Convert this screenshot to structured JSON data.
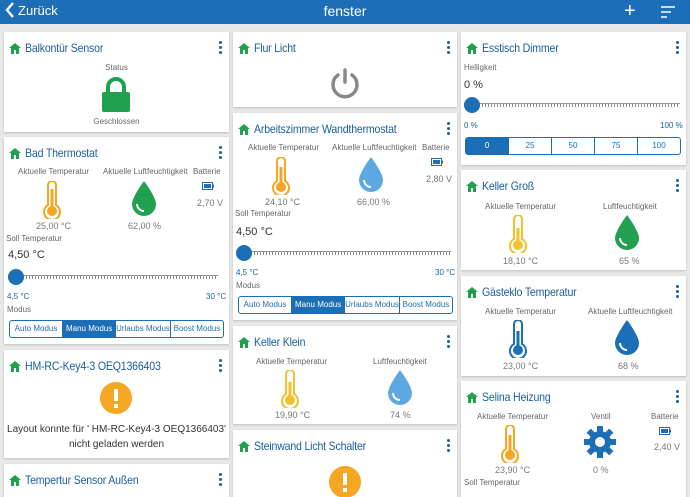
{
  "header": {
    "back_label": "Zurück",
    "title": "fenster",
    "add_label": "+"
  },
  "col1": {
    "balkon": {
      "title": "Balkontür Sensor",
      "status_label": "Status",
      "status_value": "Geschlossen"
    },
    "bad": {
      "title": "Bad Thermostat",
      "temp_label": "Aktuelle Temperatur",
      "hum_label": "Aktuelle Luftfeuchtigkeit",
      "bat_label": "Batterie",
      "temp_value": "25,00 °C",
      "hum_value": "62,00 %",
      "bat_value": "2,70 V",
      "setpoint_label": "Soll Temperatur",
      "setpoint_value": "4,50 °C",
      "min": "4,5 °C",
      "max": "30 °C",
      "mode_label": "Modus",
      "modes": [
        "Auto Modus",
        "Manu Modus",
        "Urlaubs Modus",
        "Boost Modus"
      ]
    },
    "key": {
      "title": "HM-RC-Key4-3 OEQ1366403",
      "message": "Layout konnte für ' HM-RC-Key4-3 OEQ1366403' nicht geladen werden"
    },
    "tsensor": {
      "title": "Tempertur Sensor Außen"
    }
  },
  "col2": {
    "flur": {
      "title": "Flur Licht"
    },
    "arbeit": {
      "title": "Arbeitszimmer Wandthermostat",
      "temp_label": "Aktuelle Temperatur",
      "hum_label": "Aktuelle Luftfeuchtigkeit",
      "bat_label": "Batterie",
      "temp_value": "24,10 °C",
      "hum_value": "66,00 %",
      "bat_value": "2,80 V",
      "setpoint_label": "Soll Temperatur",
      "setpoint_value": "4,50 °C",
      "min": "4,5 °C",
      "max": "30 °C",
      "mode_label": "Modus",
      "modes": [
        "Auto Modus",
        "Manu Modus",
        "Urlaubs Modus",
        "Boost Modus"
      ]
    },
    "keller_klein": {
      "title": "Keller Klein",
      "temp_label": "Aktuelle Temperatur",
      "hum_label": "Luftfeuchtigkeit",
      "temp_value": "19,90 °C",
      "hum_value": "74 %"
    },
    "steinwand": {
      "title": "Steinwand Licht Schalter"
    }
  },
  "col3": {
    "esstisch": {
      "title": "Esstisch Dimmer",
      "label": "Helligkeit",
      "value": "0 %",
      "min": "0 %",
      "max": "100 %",
      "presets": [
        "0",
        "25",
        "50",
        "75",
        "100"
      ]
    },
    "keller_gross": {
      "title": "Keller Groß",
      "temp_label": "Aktuelle Temperatur",
      "hum_label": "Luftfeuchtigkeit",
      "temp_value": "18,10 °C",
      "hum_value": "65 %"
    },
    "gaesteklo": {
      "title": "Gästeklo Temperatur",
      "temp_label": "Aktuelle Temperatur",
      "hum_label": "Aktuelle Luftfeuchtigkeit",
      "temp_value": "23,00 °C",
      "hum_value": "68 %"
    },
    "selina": {
      "title": "Selina Heizung",
      "temp_label": "Aktuelle Temperatur",
      "valve_label": "Ventil",
      "bat_label": "Batterie",
      "temp_value": "23,90 °C",
      "valve_value": "0 %",
      "bat_value": "2,40 V",
      "setpoint_label": "Soll Temperatur"
    }
  },
  "icons": {
    "home": "home-icon",
    "lock": "lock-icon",
    "thermometer": "thermometer-icon",
    "drop": "drop-icon",
    "battery": "battery-icon",
    "power": "power-icon",
    "warning": "warning-icon",
    "gear": "gear-icon",
    "kebab": "more-vert-icon"
  },
  "colors": {
    "header": "#1c6fb6",
    "accent": "#1a5e9e",
    "green": "#21a14f",
    "orange": "#f5a623",
    "yellow": "#f3c22b",
    "blue_drop": "#5da8e2",
    "grey": "#888888"
  }
}
